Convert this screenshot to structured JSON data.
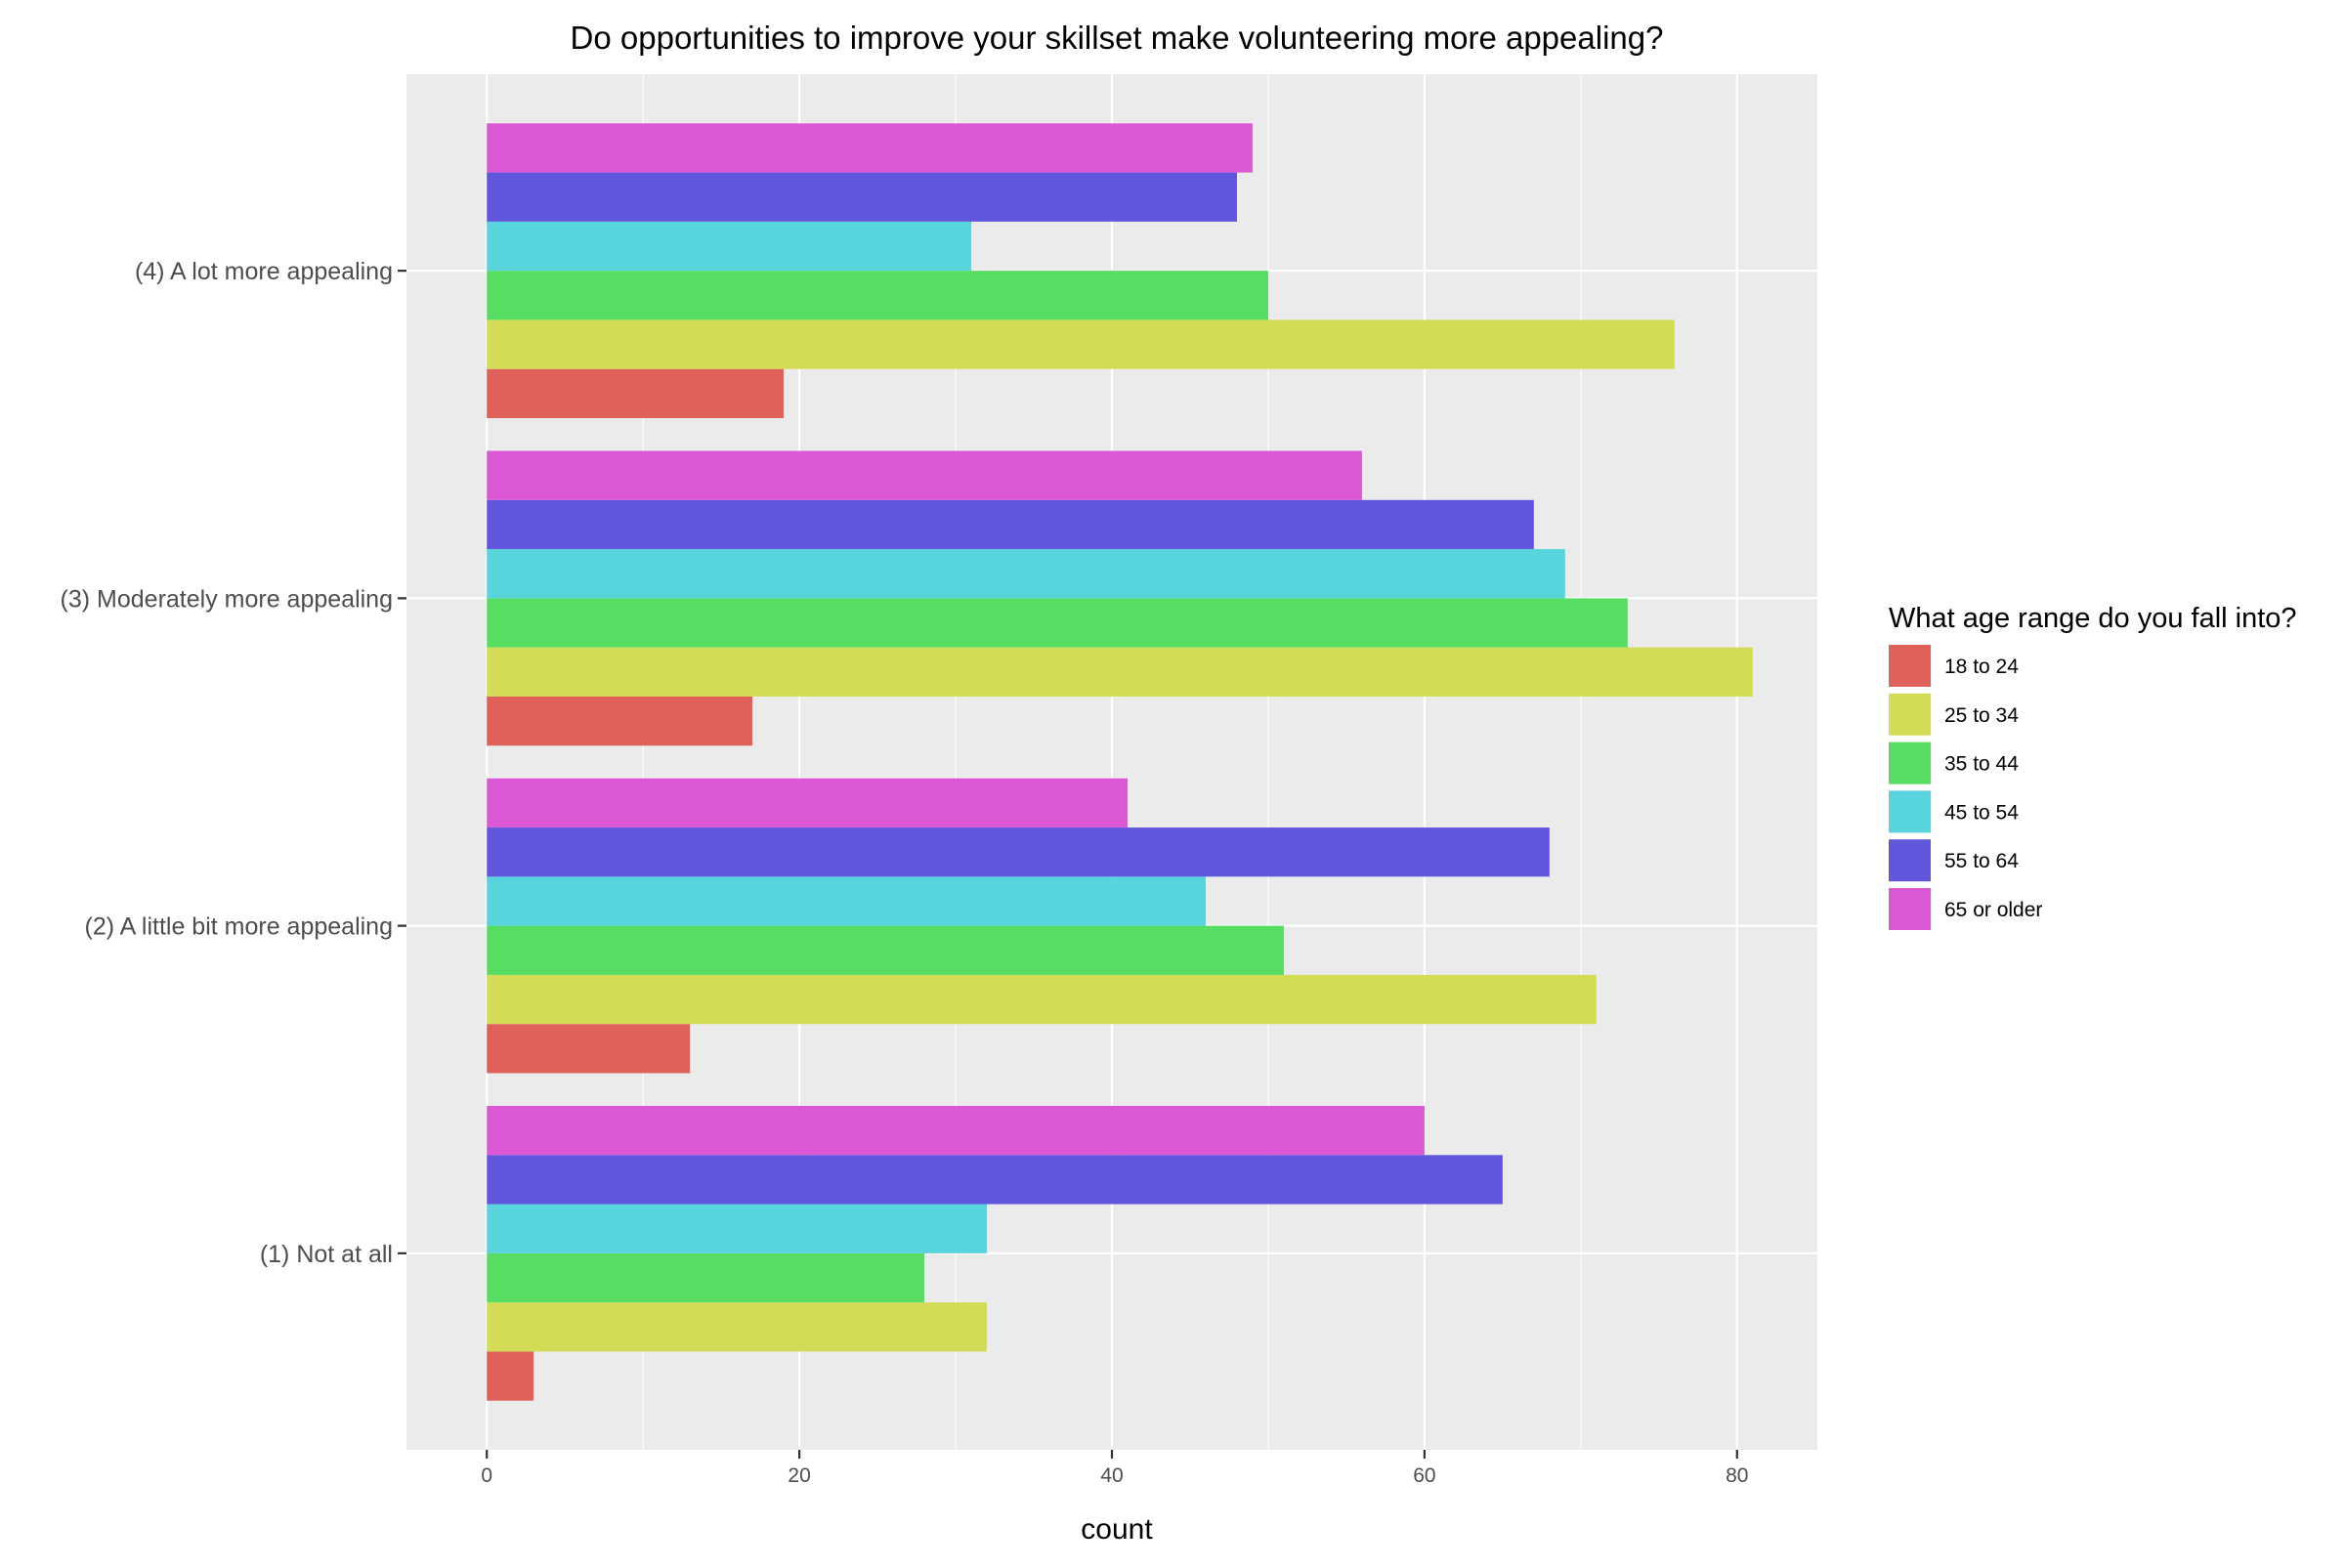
{
  "chart_data": {
    "type": "bar",
    "orientation": "horizontal",
    "position": "dodge",
    "title": "Do opportunities to improve your skillset make volunteering more appealing?",
    "xlabel": "count",
    "ylabel": "",
    "xlim": [
      -5.14,
      85.14
    ],
    "x_ticks": [
      0,
      20,
      40,
      60,
      80
    ],
    "x_tick_labels": [
      "0",
      "20",
      "40",
      "60",
      "80"
    ],
    "categories": [
      "(1) Not at all",
      "(2) A little bit more appealing",
      "(3) Moderately more appealing",
      "(4) A lot more appealing"
    ],
    "series": [
      {
        "name": "18 to 24",
        "color": "#E0605A",
        "values": [
          3,
          13,
          17,
          19
        ]
      },
      {
        "name": "25 to 34",
        "color": "#D4DC57",
        "values": [
          32,
          71,
          81,
          76
        ]
      },
      {
        "name": "35 to 44",
        "color": "#57DD62",
        "values": [
          28,
          51,
          73,
          50
        ]
      },
      {
        "name": "45 to 54",
        "color": "#57D4DC",
        "values": [
          32,
          46,
          69,
          31
        ]
      },
      {
        "name": "55 to 64",
        "color": "#6057DC",
        "values": [
          65,
          68,
          67,
          48
        ]
      },
      {
        "name": "65 or older",
        "color": "#DC57D6",
        "values": [
          60,
          41,
          56,
          49
        ]
      }
    ],
    "legend": {
      "title": "What age range do you fall into?",
      "placement": "right"
    },
    "grid": true,
    "panel_background": "#EBEBEB",
    "grid_color": "#FFFFFF"
  }
}
